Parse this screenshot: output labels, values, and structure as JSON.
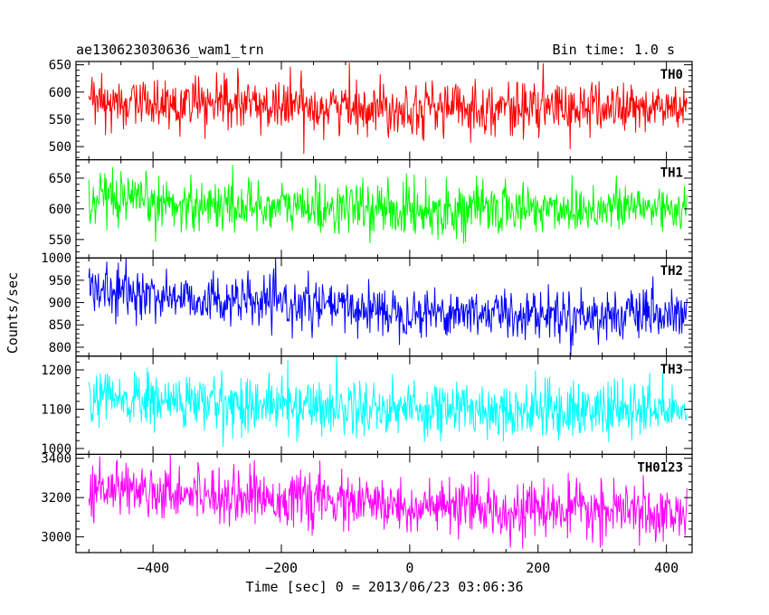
{
  "header": {
    "title": "ae130623030636_wam1_trn",
    "bin_time": "Bin time: 1.0 s"
  },
  "chart_data": {
    "type": "line",
    "title": "ae130623030636_wam1_trn",
    "ylabel": "Counts/sec",
    "xlabel": "Time [sec] 0 = 2013/06/23 03:06:36",
    "xlim": [
      -520,
      440
    ],
    "x_data_range": [
      -500,
      432
    ],
    "x_step": 1.0,
    "x_ticks": [
      -400,
      -200,
      0,
      200,
      400
    ],
    "x_tick_labels": [
      "−400",
      "−200",
      "0",
      "200",
      "400"
    ],
    "grid": false,
    "panels": [
      {
        "name": "TH0",
        "color": "#ff0000",
        "ylim": [
          476,
          656
        ],
        "y_ticks": [
          500,
          550,
          600,
          650
        ],
        "y_tick_labels": [
          "500",
          "550",
          "600",
          "650"
        ],
        "trend": [
          [
            -500,
            580
          ],
          [
            0,
            572
          ],
          [
            432,
            570
          ]
        ],
        "noise_sd": 24
      },
      {
        "name": "TH1",
        "color": "#00ff00",
        "ylim": [
          520,
          680
        ],
        "y_ticks": [
          550,
          600,
          650
        ],
        "y_tick_labels": [
          "550",
          "600",
          "650"
        ],
        "trend": [
          [
            -500,
            612
          ],
          [
            0,
            598
          ],
          [
            432,
            603
          ]
        ],
        "noise_sd": 21
      },
      {
        "name": "TH2",
        "color": "#0000ff",
        "ylim": [
          780,
          1000
        ],
        "y_ticks": [
          800,
          850,
          900,
          950,
          1000
        ],
        "y_tick_labels": [
          "800",
          "850",
          "900",
          "950",
          "1000"
        ],
        "trend": [
          [
            -500,
            928
          ],
          [
            -300,
            905
          ],
          [
            0,
            880
          ],
          [
            432,
            868
          ]
        ],
        "noise_sd": 27
      },
      {
        "name": "TH3",
        "color": "#00ffff",
        "ylim": [
          985,
          1235
        ],
        "y_ticks": [
          1000,
          1100,
          1200
        ],
        "y_tick_labels": [
          "1000",
          "1100",
          "1200"
        ],
        "trend": [
          [
            -500,
            1125
          ],
          [
            0,
            1102
          ],
          [
            432,
            1095
          ]
        ],
        "noise_sd": 36
      },
      {
        "name": "TH0123",
        "color": "#ff00ff",
        "ylim": [
          2920,
          3420
        ],
        "y_ticks": [
          3000,
          3200,
          3400
        ],
        "y_tick_labels": [
          "3000",
          "3200",
          "3400"
        ],
        "trend": [
          [
            -500,
            3260
          ],
          [
            -300,
            3220
          ],
          [
            0,
            3150
          ],
          [
            432,
            3120
          ]
        ],
        "noise_sd": 68
      }
    ]
  }
}
